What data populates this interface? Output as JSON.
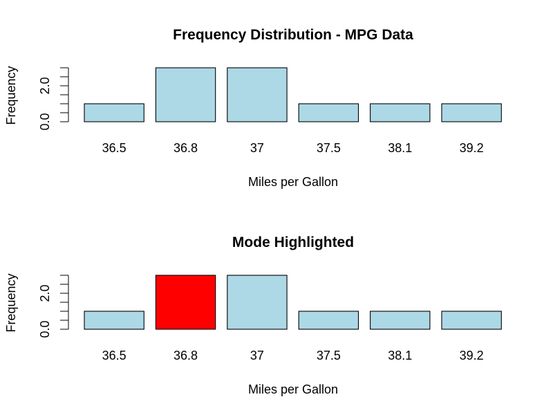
{
  "chart_data": [
    {
      "type": "bar",
      "title": "Frequency Distribution - MPG Data",
      "xlabel": "Miles per Gallon",
      "ylabel": "Frequency",
      "categories": [
        "36.5",
        "36.8",
        "37",
        "37.5",
        "38.1",
        "39.2"
      ],
      "values": [
        1,
        3,
        3,
        1,
        1,
        1
      ],
      "ylim": [
        0,
        3
      ],
      "yticks": [
        0,
        0.5,
        1,
        1.5,
        2,
        2.5,
        3
      ],
      "ytick_labels": [
        "0.0",
        "",
        "",
        "",
        "2.0",
        "",
        ""
      ],
      "bar_color": "#add8e6",
      "highlight_color": "#ff0000",
      "highlight_index": -1,
      "grid": false
    },
    {
      "type": "bar",
      "title": "Mode Highlighted",
      "xlabel": "Miles per Gallon",
      "ylabel": "Frequency",
      "categories": [
        "36.5",
        "36.8",
        "37",
        "37.5",
        "38.1",
        "39.2"
      ],
      "values": [
        1,
        3,
        3,
        1,
        1,
        1
      ],
      "ylim": [
        0,
        3
      ],
      "yticks": [
        0,
        0.5,
        1,
        1.5,
        2,
        2.5,
        3
      ],
      "ytick_labels": [
        "0.0",
        "",
        "",
        "",
        "2.0",
        "",
        ""
      ],
      "bar_color": "#add8e6",
      "highlight_color": "#ff0000",
      "highlight_index": 1,
      "grid": false
    }
  ]
}
